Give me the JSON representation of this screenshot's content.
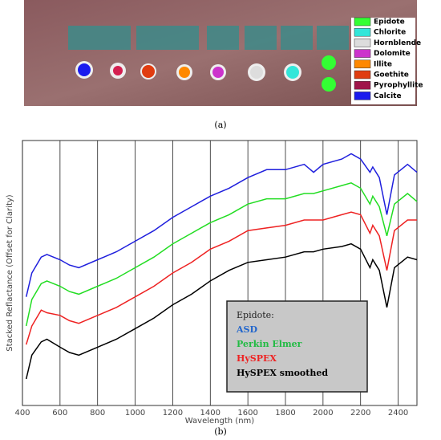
{
  "image": {
    "caption": "(a)",
    "legend": [
      {
        "label": "Epidote",
        "color": "#33ff33"
      },
      {
        "label": "Chlorite",
        "color": "#33e6d9"
      },
      {
        "label": "Hornblende",
        "color": "#dddddd"
      },
      {
        "label": "Dolomite",
        "color": "#cc33cc"
      },
      {
        "label": "Illite",
        "color": "#ff8800"
      },
      {
        "label": "Goethite",
        "color": "#e03c10"
      },
      {
        "label": "Pyrophyllite",
        "color": "#a0154a"
      },
      {
        "label": "Calcite",
        "color": "#1a1aee"
      }
    ]
  },
  "chart_data": {
    "type": "line",
    "caption": "(b)",
    "xlabel": "Wavelength (nm)",
    "ylabel": "Stacked Reflactance (Offset for Clarity)",
    "legend_title": "Epidote:",
    "xlim": [
      400,
      2500
    ],
    "xticks": [
      400,
      600,
      800,
      1000,
      1200,
      1400,
      1600,
      1800,
      2000,
      2200,
      2400
    ],
    "ylim": [
      0,
      100
    ],
    "grid": true,
    "x": [
      420,
      450,
      500,
      530,
      600,
      650,
      700,
      800,
      900,
      1000,
      1100,
      1200,
      1300,
      1400,
      1500,
      1600,
      1700,
      1800,
      1900,
      1950,
      2000,
      2100,
      2150,
      2200,
      2250,
      2265,
      2300,
      2340,
      2380,
      2450,
      2500
    ],
    "series": [
      {
        "name": "ASD",
        "color": "#1f1fdd",
        "label_color": "#2266cc",
        "values": [
          41,
          50,
          56,
          57,
          55,
          53,
          52,
          55,
          58,
          62,
          66,
          71,
          75,
          79,
          82,
          86,
          89,
          89,
          91,
          88,
          91,
          93,
          95,
          93,
          88,
          90,
          86,
          72,
          87,
          91,
          88
        ]
      },
      {
        "name": "Perkin Elmer",
        "color": "#22dd22",
        "label_color": "#22bb44",
        "values": [
          30,
          40,
          46,
          47,
          45,
          43,
          42,
          45,
          48,
          52,
          56,
          61,
          65,
          69,
          72,
          76,
          78,
          78,
          80,
          80,
          81,
          83,
          84,
          82,
          76,
          79,
          75,
          64,
          76,
          80,
          77
        ]
      },
      {
        "name": "HySPEX",
        "color": "#ee2222",
        "label_color": "#ee2222",
        "values": [
          23,
          30,
          36,
          35,
          34,
          32,
          31,
          34,
          37,
          41,
          45,
          50,
          54,
          59,
          62,
          66,
          67,
          68,
          70,
          70,
          70,
          72,
          73,
          72,
          65,
          68,
          64,
          51,
          66,
          70,
          70
        ]
      },
      {
        "name": "HySPEX smoothed",
        "color": "#000000",
        "label_color": "#000000",
        "values": [
          10,
          19,
          24,
          25,
          22,
          20,
          19,
          22,
          25,
          29,
          33,
          38,
          42,
          47,
          51,
          54,
          55,
          56,
          58,
          58,
          59,
          60,
          61,
          59,
          52,
          55,
          51,
          37,
          52,
          56,
          55
        ]
      }
    ]
  }
}
